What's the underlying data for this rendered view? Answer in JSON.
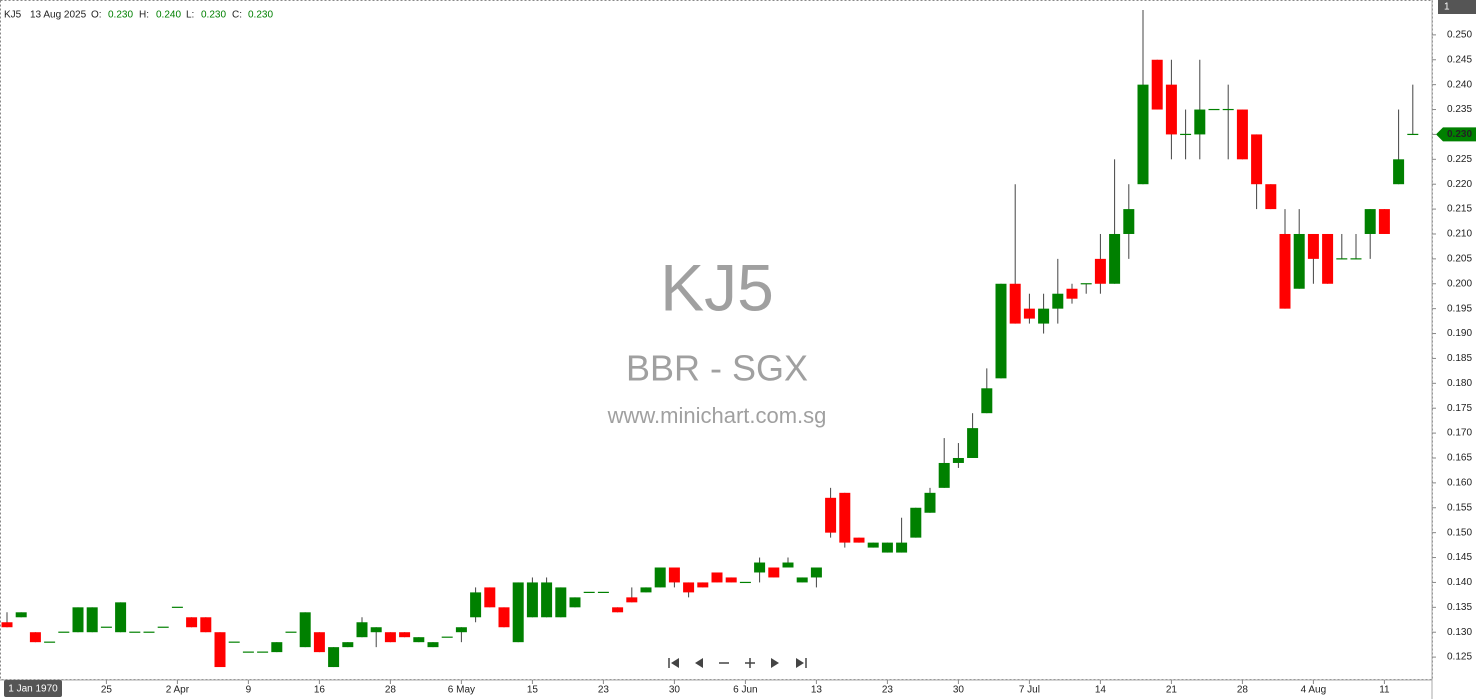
{
  "chart_data": {
    "type": "candlestick",
    "header": {
      "symbol": "KJ5",
      "date": "13 Aug 2025",
      "open_label": "O:",
      "open": "0.230",
      "high_label": "H:",
      "high": "0.240",
      "low_label": "L:",
      "low": "0.230",
      "close_label": "C:",
      "close": "0.230"
    },
    "watermark": {
      "symbol": "KJ5",
      "exchange": "BBR - SGX",
      "site": "www.minichart.com.sg"
    },
    "corner_label": "1",
    "time_label": "1 Jan 1970",
    "last_price": {
      "value": 0.23,
      "label": "0.230"
    },
    "up_color": "#008000",
    "down_color": "#ff0000",
    "categories": [
      null,
      null,
      null,
      null,
      null,
      null,
      null,
      "25",
      null,
      null,
      null,
      null,
      "2 Apr",
      null,
      null,
      null,
      null,
      "9",
      null,
      null,
      null,
      null,
      "16",
      null,
      null,
      null,
      null,
      "28",
      null,
      null,
      null,
      null,
      "6 May",
      null,
      null,
      null,
      null,
      "15",
      null,
      null,
      null,
      null,
      "23",
      null,
      null,
      null,
      null,
      "30",
      null,
      null,
      null,
      null,
      "6 Jun",
      null,
      null,
      null,
      null,
      "13",
      null,
      null,
      null,
      null,
      "23",
      null,
      null,
      null,
      null,
      "30",
      null,
      null,
      null,
      null,
      "7 Jul",
      null,
      null,
      null,
      null,
      "14",
      null,
      null,
      null,
      null,
      "21",
      null,
      null,
      null,
      null,
      "28",
      null,
      null,
      null,
      null,
      "4 Aug",
      null,
      null,
      null,
      null,
      "11",
      null,
      null
    ],
    "open": [
      0.132,
      0.133,
      0.13,
      0.128,
      0.13,
      0.13,
      0.13,
      0.131,
      0.13,
      0.13,
      0.13,
      0.131,
      0.135,
      0.133,
      0.133,
      0.13,
      0.128,
      0.126,
      0.126,
      0.126,
      0.13,
      0.127,
      0.13,
      0.123,
      0.127,
      0.129,
      0.13,
      0.13,
      0.13,
      0.128,
      0.127,
      0.129,
      0.13,
      0.133,
      0.139,
      0.135,
      0.128,
      0.133,
      0.133,
      0.133,
      0.135,
      0.138,
      0.138,
      0.135,
      0.137,
      0.138,
      0.139,
      0.143,
      0.14,
      0.14,
      0.142,
      0.141,
      0.14,
      0.142,
      0.143,
      0.143,
      0.14,
      0.141,
      0.157,
      0.158,
      0.149,
      0.147,
      0.146,
      0.146,
      0.149,
      0.154,
      0.159,
      0.164,
      0.165,
      0.174,
      0.181,
      0.2,
      0.195,
      0.192,
      0.195,
      0.199,
      0.2,
      0.205,
      0.2,
      0.21,
      0.22,
      0.245,
      0.24,
      0.23,
      0.23,
      0.235,
      0.235,
      0.235,
      0.23,
      0.22,
      0.21,
      0.199,
      0.21,
      0.21,
      0.205,
      0.205,
      0.21,
      0.215,
      0.22,
      0.23
    ],
    "high": [
      0.134,
      0.134,
      0.13,
      0.128,
      0.13,
      0.135,
      0.135,
      0.131,
      0.136,
      0.13,
      0.13,
      0.131,
      0.135,
      0.133,
      0.133,
      0.13,
      0.128,
      0.126,
      0.126,
      0.128,
      0.13,
      0.134,
      0.13,
      0.127,
      0.128,
      0.133,
      0.131,
      0.13,
      0.13,
      0.129,
      0.128,
      0.129,
      0.131,
      0.139,
      0.139,
      0.135,
      0.14,
      0.141,
      0.141,
      0.139,
      0.137,
      0.138,
      0.138,
      0.135,
      0.139,
      0.139,
      0.143,
      0.143,
      0.14,
      0.14,
      0.142,
      0.141,
      0.14,
      0.145,
      0.143,
      0.145,
      0.141,
      0.143,
      0.159,
      0.158,
      0.149,
      0.148,
      0.148,
      0.153,
      0.155,
      0.159,
      0.169,
      0.168,
      0.174,
      0.183,
      0.2,
      0.22,
      0.198,
      0.198,
      0.205,
      0.2,
      0.2,
      0.21,
      0.225,
      0.22,
      0.255,
      0.245,
      0.245,
      0.235,
      0.245,
      0.235,
      0.24,
      0.235,
      0.23,
      0.22,
      0.215,
      0.215,
      0.21,
      0.21,
      0.21,
      0.21,
      0.215,
      0.215,
      0.235,
      0.24
    ],
    "low": [
      0.131,
      0.133,
      0.128,
      0.128,
      0.13,
      0.13,
      0.13,
      0.131,
      0.13,
      0.13,
      0.13,
      0.131,
      0.135,
      0.131,
      0.13,
      0.123,
      0.128,
      0.126,
      0.126,
      0.126,
      0.13,
      0.127,
      0.126,
      0.123,
      0.127,
      0.129,
      0.127,
      0.128,
      0.129,
      0.128,
      0.127,
      0.129,
      0.128,
      0.132,
      0.135,
      0.131,
      0.128,
      0.133,
      0.133,
      0.133,
      0.135,
      0.138,
      0.138,
      0.134,
      0.136,
      0.138,
      0.139,
      0.139,
      0.137,
      0.139,
      0.14,
      0.14,
      0.14,
      0.14,
      0.141,
      0.143,
      0.14,
      0.139,
      0.149,
      0.147,
      0.148,
      0.147,
      0.146,
      0.146,
      0.149,
      0.154,
      0.159,
      0.163,
      0.165,
      0.174,
      0.181,
      0.192,
      0.192,
      0.19,
      0.192,
      0.196,
      0.198,
      0.198,
      0.2,
      0.205,
      0.22,
      0.235,
      0.225,
      0.225,
      0.225,
      0.235,
      0.225,
      0.225,
      0.215,
      0.215,
      0.195,
      0.199,
      0.2,
      0.2,
      0.205,
      0.205,
      0.205,
      0.21,
      0.22,
      0.23
    ],
    "close": [
      0.131,
      0.134,
      0.128,
      0.128,
      0.13,
      0.135,
      0.135,
      0.131,
      0.136,
      0.13,
      0.13,
      0.131,
      0.135,
      0.131,
      0.13,
      0.123,
      0.128,
      0.126,
      0.126,
      0.128,
      0.13,
      0.134,
      0.126,
      0.127,
      0.128,
      0.132,
      0.131,
      0.128,
      0.129,
      0.129,
      0.128,
      0.129,
      0.131,
      0.138,
      0.135,
      0.131,
      0.14,
      0.14,
      0.14,
      0.139,
      0.137,
      0.138,
      0.138,
      0.134,
      0.136,
      0.139,
      0.143,
      0.14,
      0.138,
      0.139,
      0.14,
      0.14,
      0.14,
      0.144,
      0.141,
      0.144,
      0.141,
      0.143,
      0.15,
      0.148,
      0.148,
      0.148,
      0.148,
      0.148,
      0.155,
      0.158,
      0.164,
      0.165,
      0.171,
      0.179,
      0.2,
      0.192,
      0.193,
      0.195,
      0.198,
      0.197,
      0.2,
      0.2,
      0.21,
      0.215,
      0.24,
      0.235,
      0.23,
      0.23,
      0.235,
      0.235,
      0.235,
      0.225,
      0.22,
      0.215,
      0.195,
      0.21,
      0.205,
      0.2,
      0.205,
      0.205,
      0.215,
      0.21,
      0.225,
      0.23
    ],
    "ylim": [
      0.1204,
      0.256
    ],
    "yticks": [
      {
        "value": 0.125,
        "label": "0.125"
      },
      {
        "value": 0.13,
        "label": "0.130"
      },
      {
        "value": 0.135,
        "label": "0.135"
      },
      {
        "value": 0.14,
        "label": "0.140"
      },
      {
        "value": 0.145,
        "label": "0.145"
      },
      {
        "value": 0.15,
        "label": "0.150"
      },
      {
        "value": 0.155,
        "label": "0.155"
      },
      {
        "value": 0.16,
        "label": "0.160"
      },
      {
        "value": 0.165,
        "label": "0.165"
      },
      {
        "value": 0.17,
        "label": "0.170"
      },
      {
        "value": 0.175,
        "label": "0.175"
      },
      {
        "value": 0.18,
        "label": "0.180"
      },
      {
        "value": 0.185,
        "label": "0.185"
      },
      {
        "value": 0.19,
        "label": "0.190"
      },
      {
        "value": 0.195,
        "label": "0.195"
      },
      {
        "value": 0.2,
        "label": "0.200"
      },
      {
        "value": 0.205,
        "label": "0.205"
      },
      {
        "value": 0.21,
        "label": "0.210"
      },
      {
        "value": 0.215,
        "label": "0.215"
      },
      {
        "value": 0.22,
        "label": "0.220"
      },
      {
        "value": 0.225,
        "label": "0.225"
      },
      {
        "value": 0.23,
        "label": "0.230"
      },
      {
        "value": 0.235,
        "label": "0.235"
      },
      {
        "value": 0.24,
        "label": "0.240"
      },
      {
        "value": 0.245,
        "label": "0.245"
      },
      {
        "value": 0.25,
        "label": "0.250"
      }
    ],
    "grid": false
  }
}
